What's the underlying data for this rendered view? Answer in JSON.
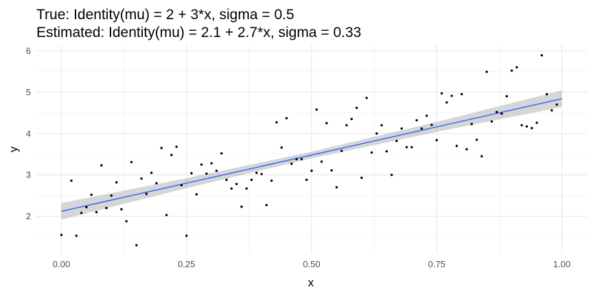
{
  "chart_data": {
    "type": "scatter",
    "title_lines": [
      "True: Identity(mu) = 2 + 3*x, sigma = 0.5",
      "Estimated: Identity(mu) = 2.1 + 2.7*x, sigma = 0.33"
    ],
    "xlabel": "x",
    "ylabel": "y",
    "xlim": [
      -0.05,
      1.05
    ],
    "ylim": [
      1.1,
      6.15
    ],
    "x_ticks": [
      0,
      0.25,
      0.5,
      0.75,
      1
    ],
    "x_tick_labels": [
      "0.00",
      "0.25",
      "0.50",
      "0.75",
      "1.00"
    ],
    "y_ticks": [
      2,
      3,
      4,
      5,
      6
    ],
    "y_tick_labels": [
      "2",
      "3",
      "4",
      "5",
      "6"
    ],
    "grid": true,
    "legend": "none",
    "colors": {
      "panel_background": "#ffffff",
      "grid_major": "#ebebeb",
      "grid_minor": "#f4f4f4",
      "points": "#000000",
      "fit_line": "#3366ff",
      "confidence_band": "#999999"
    },
    "points": [
      {
        "x": 0.0,
        "y": 1.55
      },
      {
        "x": 0.02,
        "y": 2.86
      },
      {
        "x": 0.03,
        "y": 1.53
      },
      {
        "x": 0.04,
        "y": 2.08
      },
      {
        "x": 0.05,
        "y": 2.22
      },
      {
        "x": 0.06,
        "y": 2.52
      },
      {
        "x": 0.07,
        "y": 2.1
      },
      {
        "x": 0.08,
        "y": 3.23
      },
      {
        "x": 0.09,
        "y": 2.2
      },
      {
        "x": 0.1,
        "y": 2.5
      },
      {
        "x": 0.11,
        "y": 2.82
      },
      {
        "x": 0.12,
        "y": 2.17
      },
      {
        "x": 0.13,
        "y": 1.88
      },
      {
        "x": 0.14,
        "y": 3.31
      },
      {
        "x": 0.15,
        "y": 1.3
      },
      {
        "x": 0.16,
        "y": 2.91
      },
      {
        "x": 0.17,
        "y": 2.54
      },
      {
        "x": 0.18,
        "y": 3.05
      },
      {
        "x": 0.19,
        "y": 2.8
      },
      {
        "x": 0.2,
        "y": 3.65
      },
      {
        "x": 0.21,
        "y": 2.03
      },
      {
        "x": 0.22,
        "y": 3.48
      },
      {
        "x": 0.23,
        "y": 3.68
      },
      {
        "x": 0.24,
        "y": 2.75
      },
      {
        "x": 0.25,
        "y": 1.53
      },
      {
        "x": 0.26,
        "y": 3.04
      },
      {
        "x": 0.27,
        "y": 2.53
      },
      {
        "x": 0.28,
        "y": 3.25
      },
      {
        "x": 0.29,
        "y": 3.03
      },
      {
        "x": 0.3,
        "y": 3.28
      },
      {
        "x": 0.31,
        "y": 3.1
      },
      {
        "x": 0.32,
        "y": 3.52
      },
      {
        "x": 0.33,
        "y": 2.88
      },
      {
        "x": 0.34,
        "y": 2.67
      },
      {
        "x": 0.35,
        "y": 2.78
      },
      {
        "x": 0.36,
        "y": 2.23
      },
      {
        "x": 0.37,
        "y": 2.67
      },
      {
        "x": 0.38,
        "y": 2.88
      },
      {
        "x": 0.39,
        "y": 3.05
      },
      {
        "x": 0.4,
        "y": 3.02
      },
      {
        "x": 0.41,
        "y": 2.27
      },
      {
        "x": 0.42,
        "y": 2.86
      },
      {
        "x": 0.43,
        "y": 4.27
      },
      {
        "x": 0.44,
        "y": 3.66
      },
      {
        "x": 0.45,
        "y": 4.37
      },
      {
        "x": 0.46,
        "y": 3.27
      },
      {
        "x": 0.47,
        "y": 3.38
      },
      {
        "x": 0.48,
        "y": 3.38
      },
      {
        "x": 0.49,
        "y": 2.88
      },
      {
        "x": 0.5,
        "y": 3.1
      },
      {
        "x": 0.51,
        "y": 4.58
      },
      {
        "x": 0.52,
        "y": 3.32
      },
      {
        "x": 0.53,
        "y": 4.25
      },
      {
        "x": 0.54,
        "y": 3.11
      },
      {
        "x": 0.55,
        "y": 2.7
      },
      {
        "x": 0.56,
        "y": 3.58
      },
      {
        "x": 0.57,
        "y": 4.2
      },
      {
        "x": 0.58,
        "y": 4.35
      },
      {
        "x": 0.59,
        "y": 4.62
      },
      {
        "x": 0.6,
        "y": 2.93
      },
      {
        "x": 0.61,
        "y": 4.86
      },
      {
        "x": 0.62,
        "y": 3.54
      },
      {
        "x": 0.63,
        "y": 4.0
      },
      {
        "x": 0.64,
        "y": 4.2
      },
      {
        "x": 0.65,
        "y": 3.57
      },
      {
        "x": 0.66,
        "y": 3.0
      },
      {
        "x": 0.67,
        "y": 3.82
      },
      {
        "x": 0.68,
        "y": 4.12
      },
      {
        "x": 0.69,
        "y": 3.67
      },
      {
        "x": 0.7,
        "y": 3.67
      },
      {
        "x": 0.71,
        "y": 4.32
      },
      {
        "x": 0.72,
        "y": 4.12
      },
      {
        "x": 0.73,
        "y": 4.43
      },
      {
        "x": 0.74,
        "y": 4.21
      },
      {
        "x": 0.75,
        "y": 3.84
      },
      {
        "x": 0.76,
        "y": 4.97
      },
      {
        "x": 0.77,
        "y": 4.75
      },
      {
        "x": 0.78,
        "y": 4.91
      },
      {
        "x": 0.79,
        "y": 3.7
      },
      {
        "x": 0.8,
        "y": 4.95
      },
      {
        "x": 0.81,
        "y": 3.62
      },
      {
        "x": 0.82,
        "y": 4.23
      },
      {
        "x": 0.83,
        "y": 3.85
      },
      {
        "x": 0.84,
        "y": 3.45
      },
      {
        "x": 0.85,
        "y": 5.49
      },
      {
        "x": 0.86,
        "y": 4.29
      },
      {
        "x": 0.87,
        "y": 4.52
      },
      {
        "x": 0.88,
        "y": 4.48
      },
      {
        "x": 0.89,
        "y": 4.9
      },
      {
        "x": 0.9,
        "y": 5.52
      },
      {
        "x": 0.91,
        "y": 5.6
      },
      {
        "x": 0.92,
        "y": 4.2
      },
      {
        "x": 0.93,
        "y": 4.17
      },
      {
        "x": 0.94,
        "y": 4.13
      },
      {
        "x": 0.95,
        "y": 4.26
      },
      {
        "x": 0.96,
        "y": 5.89
      },
      {
        "x": 0.97,
        "y": 4.95
      },
      {
        "x": 0.98,
        "y": 4.56
      },
      {
        "x": 0.99,
        "y": 4.7
      }
    ],
    "fit": {
      "x": [
        0,
        0.25,
        0.5,
        0.75,
        1
      ],
      "y": [
        2.12,
        2.8,
        3.48,
        4.16,
        4.84
      ],
      "lower": [
        1.92,
        2.68,
        3.4,
        4.04,
        4.64
      ],
      "upper": [
        2.32,
        2.92,
        3.56,
        4.28,
        5.04
      ]
    }
  }
}
